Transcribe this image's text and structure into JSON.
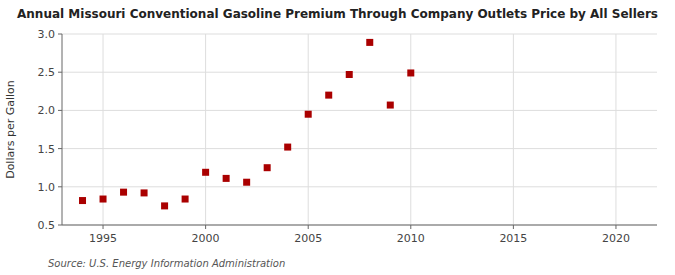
{
  "chart_data": {
    "type": "scatter",
    "title": "Annual Missouri Conventional Gasoline Premium Through Company Outlets Price by All Sellers",
    "ylabel": "Dollars per Gallon",
    "source": "Source: U.S. Energy Information Administration",
    "color": "#aa0000",
    "marker": "square",
    "grid": true,
    "xlim": [
      1993,
      2022
    ],
    "ylim": [
      0.5,
      3.0
    ],
    "xticks": [
      1995,
      2000,
      2005,
      2010,
      2015,
      2020
    ],
    "yticks": [
      0.5,
      {
        "value": 1.0,
        "label": "1.0"
      },
      1.5,
      {
        "value": 2.0,
        "label": "2.0"
      },
      2.5,
      {
        "value": 3.0,
        "label": "3.0"
      }
    ],
    "x": [
      1994,
      1995,
      1996,
      1997,
      1998,
      1999,
      2000,
      2001,
      2002,
      2003,
      2004,
      2005,
      2006,
      2007,
      2008,
      2009,
      2010
    ],
    "values": [
      0.82,
      0.84,
      0.93,
      0.92,
      0.75,
      0.84,
      1.19,
      1.11,
      1.06,
      1.25,
      1.52,
      1.95,
      2.2,
      2.47,
      2.89,
      2.07,
      2.49
    ]
  }
}
